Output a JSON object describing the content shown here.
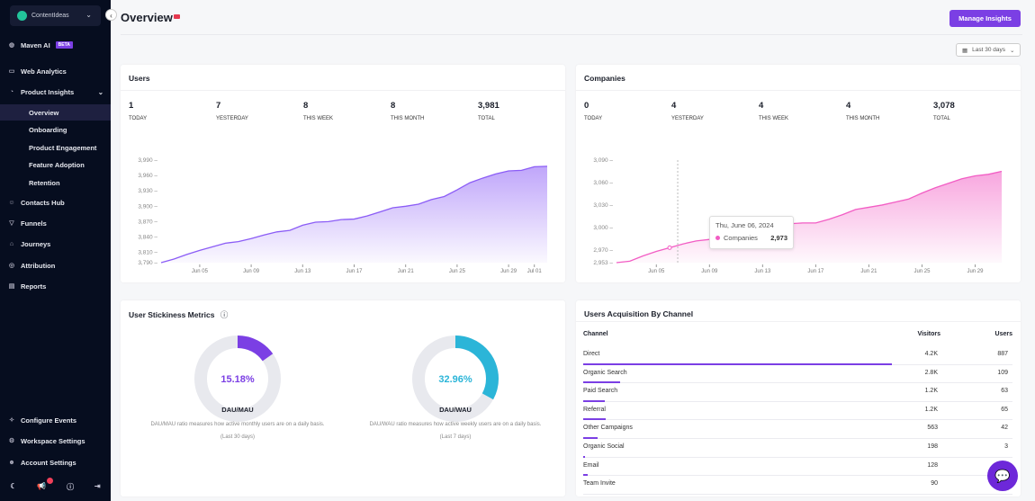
{
  "sidebar": {
    "workspace": "ContentIdeas",
    "beta": "BETA",
    "items": [
      {
        "label": "Maven AI",
        "icon": "brain-icon"
      },
      {
        "label": "Web Analytics",
        "icon": "browser-icon"
      },
      {
        "label": "Product Insights",
        "icon": "pie-icon"
      }
    ],
    "sub": [
      "Overview",
      "Onboarding",
      "Product Engagement",
      "Feature Adoption",
      "Retention"
    ],
    "items2": [
      "Contacts Hub",
      "Funnels",
      "Journeys",
      "Attribution",
      "Reports"
    ],
    "bottom": [
      "Configure Events",
      "Workspace Settings",
      "Account Settings"
    ]
  },
  "header": {
    "title": "Overview",
    "manage": "Manage Insights",
    "date_range": "Last 30 days"
  },
  "users": {
    "title": "Users",
    "stats": [
      {
        "v": "1",
        "l": "TODAY"
      },
      {
        "v": "7",
        "l": "YESTERDAY"
      },
      {
        "v": "8",
        "l": "THIS WEEK"
      },
      {
        "v": "8",
        "l": "THIS MONTH"
      },
      {
        "v": "3,981",
        "l": "TOTAL"
      }
    ]
  },
  "companies": {
    "title": "Companies",
    "stats": [
      {
        "v": "0",
        "l": "TODAY"
      },
      {
        "v": "4",
        "l": "YESTERDAY"
      },
      {
        "v": "4",
        "l": "THIS WEEK"
      },
      {
        "v": "4",
        "l": "THIS MONTH"
      },
      {
        "v": "3,078",
        "l": "TOTAL"
      }
    ],
    "tooltip": {
      "date": "Thu, June 06, 2024",
      "series": "Companies",
      "value": "2,973"
    }
  },
  "chart_data": [
    {
      "type": "area",
      "color": "#8b5cf6",
      "yticks": [
        "3,790",
        "3,810",
        "3,840",
        "3,870",
        "3,900",
        "3,930",
        "3,960",
        "3,990"
      ],
      "ylim": [
        3790,
        3990
      ],
      "xticks": [
        "Jun 05",
        "Jun 09",
        "Jun 13",
        "Jun 17",
        "Jun 21",
        "Jun 25",
        "Jun 29",
        "Jul 01"
      ],
      "xtick_idx": [
        3,
        7,
        11,
        15,
        19,
        23,
        27,
        29
      ],
      "values": [
        3790,
        3797,
        3806,
        3814,
        3821,
        3828,
        3831,
        3837,
        3844,
        3850,
        3853,
        3863,
        3869,
        3870,
        3874,
        3875,
        3881,
        3889,
        3897,
        3900,
        3904,
        3913,
        3919,
        3932,
        3946,
        3955,
        3963,
        3969,
        3970,
        3977,
        3978
      ]
    },
    {
      "type": "area",
      "color": "#f25dc4",
      "yticks": [
        "2,953",
        "2,970",
        "3,000",
        "3,030",
        "3,060",
        "3,090"
      ],
      "ylim": [
        2953,
        3090
      ],
      "xticks": [
        "Jun 05",
        "Jun 09",
        "Jun 13",
        "Jun 17",
        "Jun 21",
        "Jun 25",
        "Jun 29"
      ],
      "xtick_idx": [
        3,
        7,
        11,
        15,
        19,
        23,
        27
      ],
      "values": [
        2953,
        2955,
        2962,
        2968,
        2973,
        2978,
        2982,
        2984,
        2986,
        2990,
        2995,
        3000,
        3003,
        3005,
        3006,
        3006,
        3011,
        3017,
        3024,
        3027,
        3030,
        3034,
        3038,
        3046,
        3053,
        3059,
        3065,
        3069,
        3071,
        3075
      ]
    }
  ],
  "stickiness": {
    "title": "User Stickiness Metrics",
    "donuts": [
      {
        "pct": 15.18,
        "label": "15.18%",
        "title": "DAU/MAU",
        "desc": "DAU/MAU ratio measures how active monthly users are on a daily basis.",
        "period": "(Last 30 days)",
        "color": "#7b3fe4"
      },
      {
        "pct": 32.96,
        "label": "32.96%",
        "title": "DAU/WAU",
        "desc": "DAU/WAU ratio measures how active weekly users are on a daily basis.",
        "period": "(Last 7 days)",
        "color": "#2bb5d8"
      }
    ]
  },
  "acquisition": {
    "title": "Users Acquisition By Channel",
    "headers": [
      "Channel",
      "Visitors",
      "Users"
    ],
    "rows": [
      {
        "c": "Direct",
        "v": "4.2K",
        "u": "887",
        "p": 72
      },
      {
        "c": "Organic Search",
        "v": "2.8K",
        "u": "109",
        "p": 8.5
      },
      {
        "c": "Paid Search",
        "v": "1.2K",
        "u": "63",
        "p": 5
      },
      {
        "c": "Referral",
        "v": "1.2K",
        "u": "65",
        "p": 5.2
      },
      {
        "c": "Other Campaigns",
        "v": "563",
        "u": "42",
        "p": 3.4
      },
      {
        "c": "Organic Social",
        "v": "198",
        "u": "3",
        "p": 0.4
      },
      {
        "c": "Email",
        "v": "128",
        "u": "",
        "p": 1
      },
      {
        "c": "Team Invite",
        "v": "90",
        "u": "",
        "p": 0
      }
    ]
  }
}
